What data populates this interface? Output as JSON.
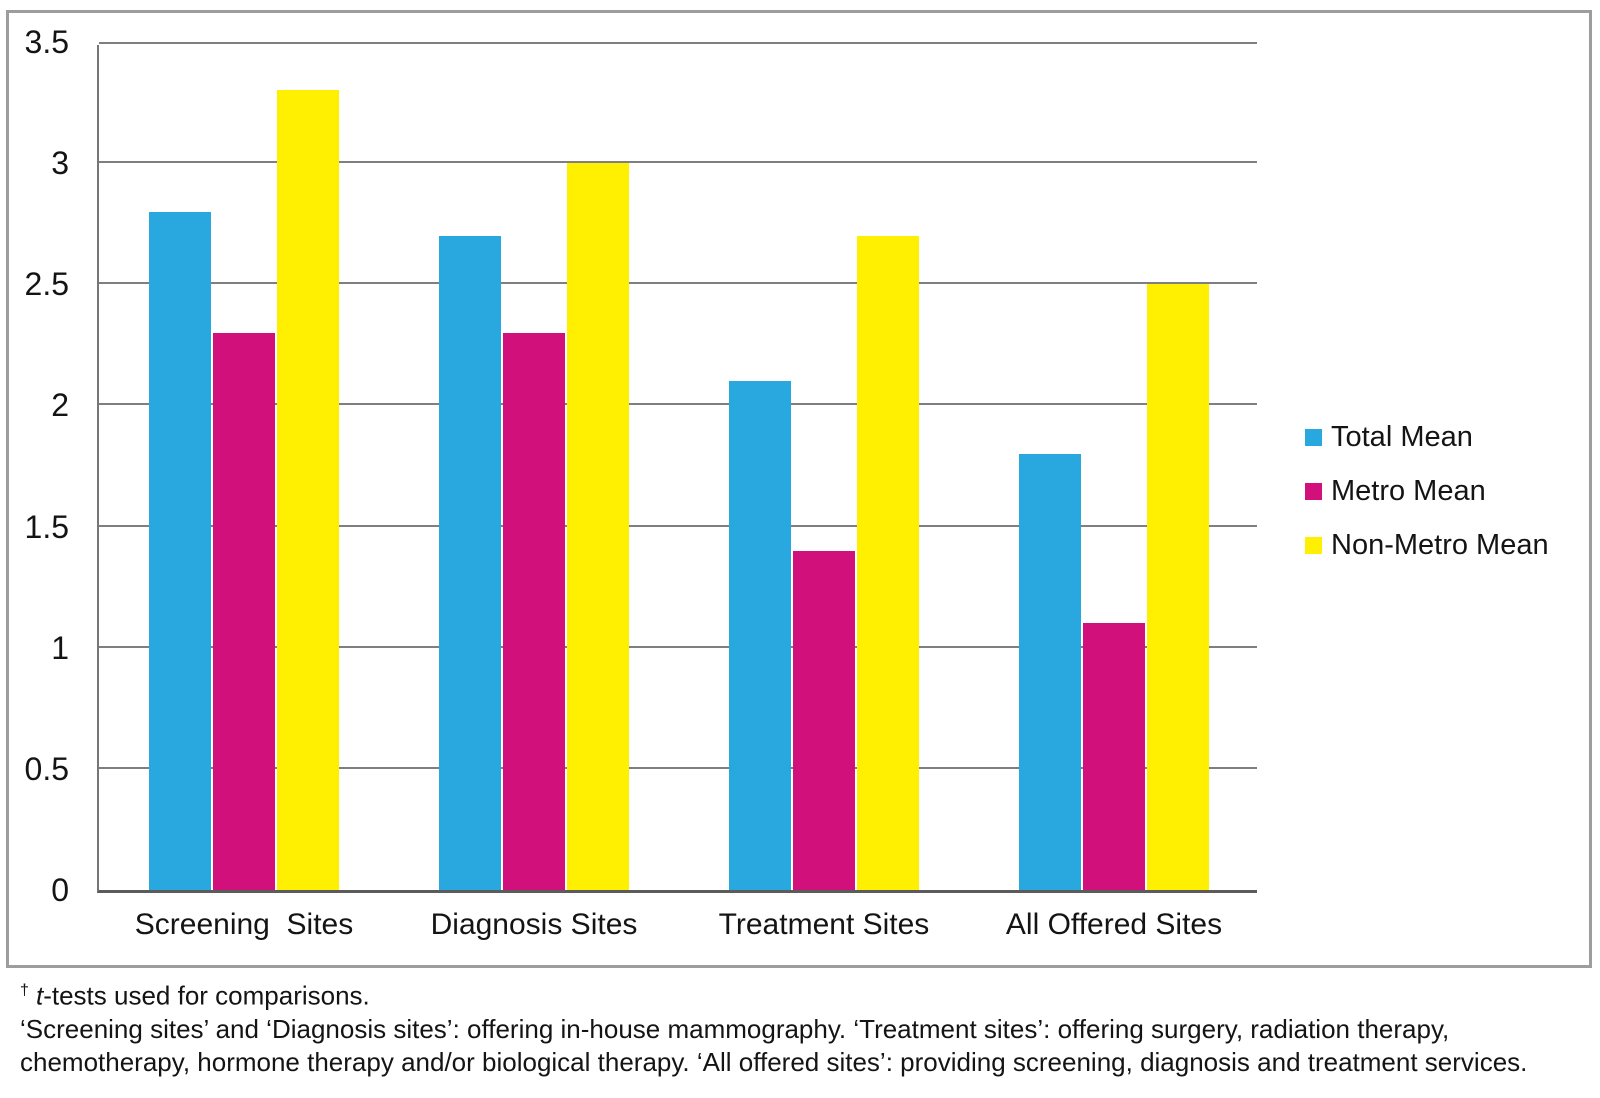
{
  "chart_data": {
    "type": "bar",
    "title": "",
    "xlabel": "",
    "ylabel": "",
    "categories": [
      "Screening  Sites",
      "Diagnosis Sites",
      "Treatment Sites",
      "All Offered Sites"
    ],
    "series": [
      {
        "name": "Total Mean",
        "color": "#29a8e0",
        "values": [
          2.8,
          2.7,
          2.1,
          1.8
        ]
      },
      {
        "name": "Metro Mean",
        "color": "#d2107c",
        "values": [
          2.3,
          2.3,
          1.4,
          1.1
        ]
      },
      {
        "name": "Non-Metro Mean",
        "color": "#fef000",
        "values": [
          3.3,
          3.0,
          2.7,
          2.5
        ]
      }
    ],
    "ylim": [
      0,
      3.5
    ],
    "ytick_step": 0.5,
    "ytick_labels": [
      "0",
      "0.5",
      "1",
      "1.5",
      "2",
      "2.5",
      "3",
      "3.5"
    ],
    "grid": true,
    "gridline_color": "#7f7f7f",
    "legend_position": "right"
  },
  "footnote": {
    "dagger": "†",
    "line1_italic": "t",
    "line1_rest": "-tests used for comparisons.",
    "body": "‘Screening sites’ and ‘Diagnosis sites’: offering in-house mammography. ‘Treatment sites’: offering surgery, radiation therapy, chemotherapy, hormone therapy and/or biological therapy. ‘All offered sites’: providing screening, diagnosis and treatment services."
  }
}
